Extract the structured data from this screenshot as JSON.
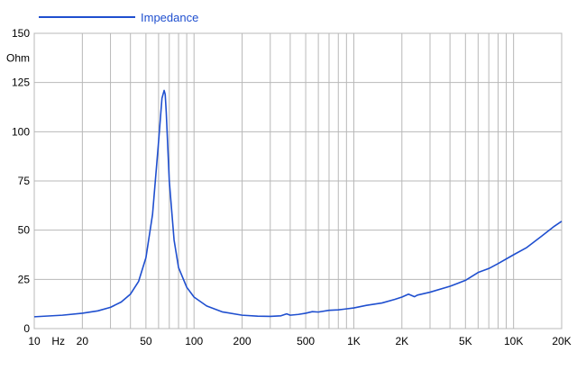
{
  "chart_data": {
    "type": "line",
    "xscale": "log",
    "xlim": [
      10,
      20000
    ],
    "ylim": [
      0,
      150
    ],
    "ylabel": "Ohm",
    "xlabel": "Hz",
    "grid": true,
    "legend_position": "top-left",
    "y_ticks": [
      0,
      25,
      50,
      75,
      100,
      125,
      150
    ],
    "x_tick_labels": [
      {
        "x": 10,
        "label": "10"
      },
      {
        "x": 20,
        "label": "20"
      },
      {
        "x": 50,
        "label": "50"
      },
      {
        "x": 100,
        "label": "100"
      },
      {
        "x": 200,
        "label": "200"
      },
      {
        "x": 500,
        "label": "500"
      },
      {
        "x": 1000,
        "label": "1K"
      },
      {
        "x": 2000,
        "label": "2K"
      },
      {
        "x": 5000,
        "label": "5K"
      },
      {
        "x": 10000,
        "label": "10K"
      },
      {
        "x": 20000,
        "label": "20K"
      }
    ],
    "series": [
      {
        "name": "Impedance",
        "color": "#1f4fcf",
        "x": [
          10,
          15,
          20,
          25,
          30,
          35,
          40,
          45,
          50,
          55,
          60,
          63,
          65,
          66,
          67,
          70,
          75,
          80,
          90,
          100,
          120,
          150,
          200,
          250,
          300,
          350,
          380,
          400,
          450,
          500,
          550,
          600,
          700,
          800,
          1000,
          1200,
          1500,
          1800,
          2000,
          2200,
          2400,
          2500,
          3000,
          4000,
          5000,
          6000,
          7000,
          8000,
          10000,
          12000,
          15000,
          18000,
          20000
        ],
        "y": [
          6,
          6.8,
          7.8,
          9,
          10.8,
          13.5,
          17.5,
          24,
          36,
          58,
          95,
          117,
          121,
          119,
          110,
          75,
          45,
          31,
          21,
          16,
          11.5,
          8.5,
          6.8,
          6.3,
          6.2,
          6.5,
          7.5,
          6.8,
          7.2,
          7.8,
          8.6,
          8.4,
          9.3,
          9.5,
          10.5,
          11.8,
          13,
          14.8,
          16,
          17.5,
          16.2,
          17,
          18.5,
          21.5,
          24.5,
          28.5,
          30.5,
          33,
          37.5,
          41,
          47,
          52,
          54.5
        ]
      }
    ]
  }
}
